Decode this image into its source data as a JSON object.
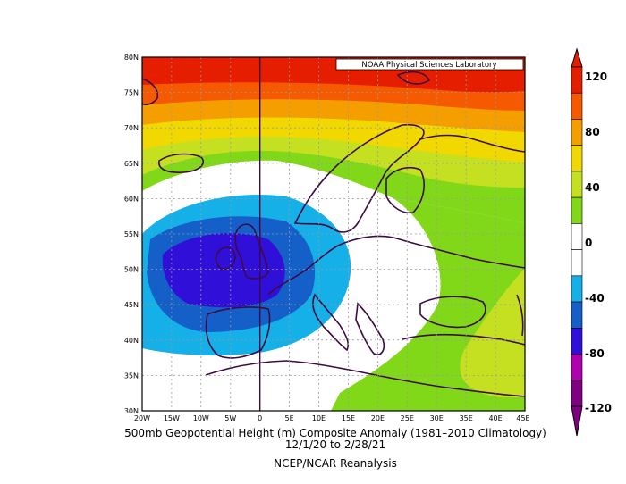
{
  "map": {
    "credit": "NOAA Physical Sciences Laboratory",
    "lat_ticks": [
      "80N",
      "75N",
      "70N",
      "65N",
      "60N",
      "55N",
      "50N",
      "45N",
      "40N",
      "35N",
      "30N"
    ],
    "lon_ticks": [
      "20W",
      "15W",
      "10W",
      "5W",
      "0",
      "5E",
      "10E",
      "15E",
      "20E",
      "25E",
      "30E",
      "35E",
      "40E",
      "45E"
    ],
    "extent": {
      "lon": [
        -20,
        45
      ],
      "lat": [
        30,
        80
      ]
    },
    "grid": true,
    "field": "500mb geopotential height anomaly (m)",
    "features": {
      "negative_center": {
        "label": "",
        "approx_lon": -10,
        "approx_lat": 50,
        "min_value": -80
      },
      "positive_band_north": {
        "approx_lat_min": 68,
        "max_value": 120
      }
    }
  },
  "colorbar": {
    "labels": [
      "120",
      "80",
      "40",
      "0",
      "-40",
      "-80",
      "-120"
    ],
    "levels": [
      -120,
      -100,
      -80,
      -60,
      -40,
      -20,
      0,
      20,
      40,
      60,
      80,
      100,
      120
    ],
    "colors": [
      "#7f0080",
      "#b000b0",
      "#3010d8",
      "#1560c8",
      "#16b0e8",
      "#ffffff",
      "#ffffff",
      "#80d818",
      "#c4e020",
      "#f0d800",
      "#f59e00",
      "#f55a00",
      "#e61e00"
    ]
  },
  "caption": {
    "line1": "500mb Geopotential Height (m) Composite Anomaly (1981–2010 Climatology)",
    "line2": "12/1/20   to 2/28/21",
    "line3": "NCEP/NCAR Reanalysis"
  }
}
